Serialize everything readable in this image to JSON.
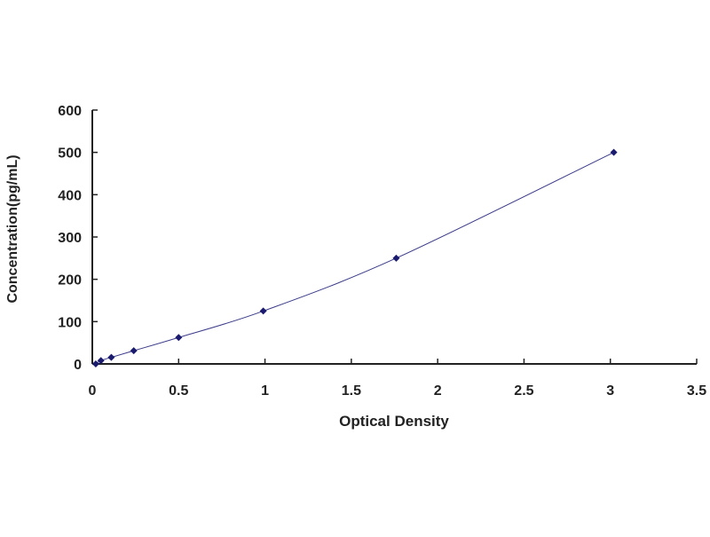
{
  "chart_data": {
    "type": "scatter",
    "title": "",
    "xlabel": "Optical Density",
    "ylabel": "Concentration(pg/mL)",
    "xlim": [
      0,
      3.5
    ],
    "ylim": [
      0,
      600
    ],
    "xticks": [
      "0",
      "0.5",
      "1",
      "1.5",
      "2",
      "2.5",
      "3",
      "3.5"
    ],
    "yticks": [
      "0",
      "100",
      "200",
      "300",
      "400",
      "500",
      "600"
    ],
    "grid": false,
    "legend": "none",
    "trendline": "smooth curve through points",
    "series": [
      {
        "x": [
          0.02,
          0.05,
          0.11,
          0.24,
          0.5,
          0.99,
          1.76,
          3.02
        ],
        "y": [
          0,
          7.8,
          15.6,
          31.2,
          62.5,
          125,
          250,
          500
        ]
      }
    ],
    "colors": {
      "marker": "#1a1a6e",
      "line": "#3a3a8a",
      "axis": "#222222"
    }
  }
}
